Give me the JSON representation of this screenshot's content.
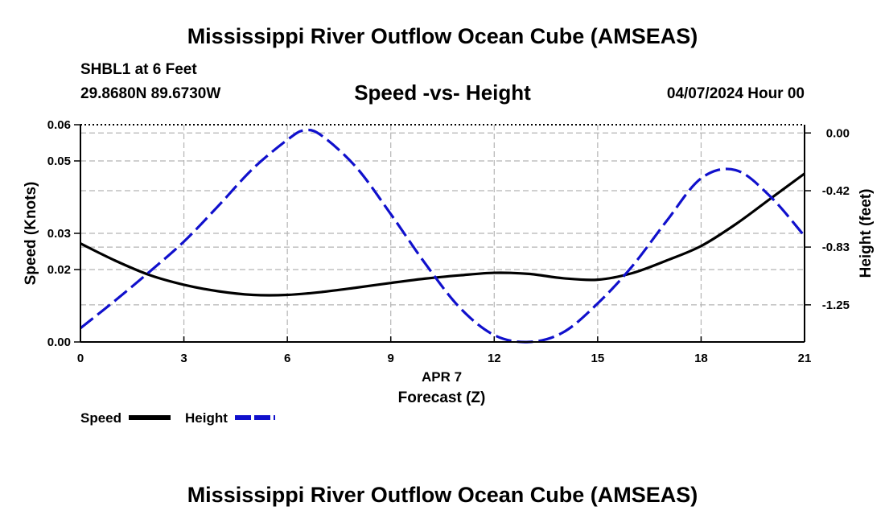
{
  "header": {
    "title": "Mississippi River Outflow Ocean Cube (AMSEAS)",
    "station": "SHBL1 at 6 Feet",
    "coordinates": "29.8680N  89.6730W",
    "datetime": "04/07/2024 Hour 00"
  },
  "footer": {
    "title": "Mississippi River Outflow Ocean Cube (AMSEAS)"
  },
  "legend": {
    "speed_label": "Speed",
    "height_label": "Height"
  },
  "colors": {
    "speed": "#000000",
    "height": "#1010cc",
    "grid": "#b4b4b4"
  },
  "chart_data": {
    "type": "line",
    "title": "Speed -vs- Height",
    "xlabel_line1": "APR 7",
    "xlabel": "Forecast (Z)",
    "ylabel": "Speed (Knots)",
    "y2label": "Height (feet)",
    "xlim": [
      0,
      21
    ],
    "ylim": [
      0,
      0.06
    ],
    "y2lim": [
      -1.52,
      0.06
    ],
    "x_ticks": [
      0,
      3,
      6,
      9,
      12,
      15,
      18,
      21
    ],
    "y_ticks": [
      0.0,
      0.02,
      0.03,
      0.05,
      0.06
    ],
    "y_tick_labels": [
      "0.00",
      "0.02",
      "0.03",
      "0.05",
      "0.06"
    ],
    "y2_ticks": [
      0.0,
      -0.42,
      -0.83,
      -1.25
    ],
    "y2_tick_labels": [
      "0.00",
      "-0.42",
      "-0.83",
      "-1.25"
    ],
    "series": [
      {
        "name": "Speed",
        "axis": "left",
        "style": "solid",
        "x": [
          0,
          1,
          2,
          3,
          4,
          5,
          6,
          7,
          8,
          9,
          10,
          11,
          12,
          13,
          14,
          15,
          16,
          17,
          18,
          19,
          20,
          21
        ],
        "values": [
          0.0272,
          0.0225,
          0.0185,
          0.0158,
          0.014,
          0.013,
          0.013,
          0.0138,
          0.015,
          0.0163,
          0.0175,
          0.0184,
          0.0191,
          0.0188,
          0.0176,
          0.0172,
          0.019,
          0.0225,
          0.0265,
          0.0325,
          0.0395,
          0.0465
        ]
      },
      {
        "name": "Height",
        "axis": "right",
        "style": "dashed",
        "x": [
          0,
          1,
          2,
          3,
          4,
          5,
          6,
          6.5,
          7,
          8,
          9,
          10,
          11,
          12,
          13,
          14,
          15,
          16,
          17,
          18,
          19,
          20,
          21
        ],
        "values": [
          -1.42,
          -1.22,
          -1.01,
          -0.79,
          -0.53,
          -0.26,
          -0.05,
          0.02,
          -0.02,
          -0.25,
          -0.59,
          -0.95,
          -1.27,
          -1.47,
          -1.52,
          -1.45,
          -1.24,
          -0.97,
          -0.64,
          -0.33,
          -0.27,
          -0.46,
          -0.75
        ]
      }
    ]
  }
}
